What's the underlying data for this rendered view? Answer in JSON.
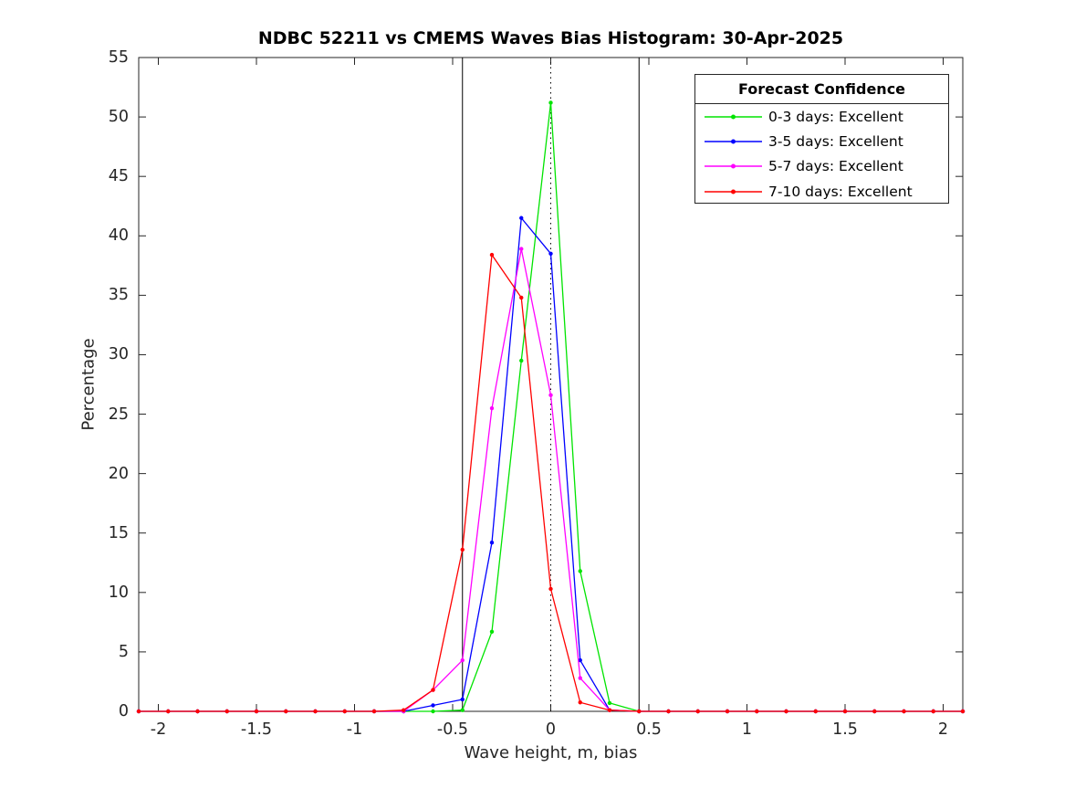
{
  "chart_data": {
    "type": "line",
    "title": "NDBC 52211 vs CMEMS Waves Bias Histogram: 30-Apr-2025",
    "xlabel": "Wave height, m, bias",
    "ylabel": "Percentage",
    "xlim": [
      -2.1,
      2.1
    ],
    "ylim": [
      0,
      55
    ],
    "grid": false,
    "xticks": [
      -2,
      -1.5,
      -1,
      -0.5,
      0,
      0.5,
      1,
      1.5,
      2
    ],
    "xtick_labels": [
      "-2",
      "-1.5",
      "-1",
      "-0.5",
      "0",
      "0.5",
      "1",
      "1.5",
      "2"
    ],
    "yticks": [
      0,
      5,
      10,
      15,
      20,
      25,
      30,
      35,
      40,
      45,
      50,
      55
    ],
    "ytick_labels": [
      "0",
      "5",
      "10",
      "15",
      "20",
      "25",
      "30",
      "35",
      "40",
      "45",
      "50",
      "55"
    ],
    "x": [
      -2.1,
      -1.95,
      -1.8,
      -1.65,
      -1.5,
      -1.35,
      -1.2,
      -1.05,
      -0.9,
      -0.75,
      -0.6,
      -0.45,
      -0.3,
      -0.15,
      0,
      0.15,
      0.3,
      0.45,
      0.6,
      0.75,
      0.9,
      1.05,
      1.2,
      1.35,
      1.5,
      1.65,
      1.8,
      1.95,
      2.1
    ],
    "series": [
      {
        "name": "0-3 days: Excellent",
        "color": "#00e400",
        "values": [
          0,
          0,
          0,
          0,
          0,
          0,
          0,
          0,
          0,
          0,
          0,
          0.1,
          6.7,
          29.5,
          51.2,
          11.8,
          0.7,
          0,
          0,
          0,
          0,
          0,
          0,
          0,
          0,
          0,
          0,
          0,
          0
        ]
      },
      {
        "name": "3-5 days: Excellent",
        "color": "#0000ff",
        "values": [
          0,
          0,
          0,
          0,
          0,
          0,
          0,
          0,
          0,
          0,
          0.5,
          1.0,
          14.2,
          41.5,
          38.5,
          4.3,
          0.1,
          0,
          0,
          0,
          0,
          0,
          0,
          0,
          0,
          0,
          0,
          0,
          0
        ]
      },
      {
        "name": "5-7 days: Excellent",
        "color": "#ff00ff",
        "values": [
          0,
          0,
          0,
          0,
          0,
          0,
          0,
          0,
          0,
          0,
          1.8,
          4.3,
          25.5,
          38.9,
          26.6,
          2.8,
          0.1,
          0,
          0,
          0,
          0,
          0,
          0,
          0,
          0,
          0,
          0,
          0,
          0
        ]
      },
      {
        "name": "7-10 days: Excellent",
        "color": "#ff0000",
        "values": [
          0,
          0,
          0,
          0,
          0,
          0,
          0,
          0,
          0,
          0.1,
          1.8,
          13.6,
          38.4,
          34.8,
          10.3,
          0.75,
          0.1,
          0,
          0,
          0,
          0,
          0,
          0,
          0,
          0,
          0,
          0,
          0,
          0
        ]
      }
    ],
    "reference_lines": [
      {
        "x": -0.45,
        "style": "solid",
        "color": "#000000"
      },
      {
        "x": 0,
        "style": "dotted",
        "color": "#000000"
      },
      {
        "x": 0.45,
        "style": "solid",
        "color": "#000000"
      }
    ],
    "legend": {
      "title": "Forecast Confidence",
      "position": "top-right"
    },
    "axis_color": "#262626",
    "marker": "dot"
  }
}
